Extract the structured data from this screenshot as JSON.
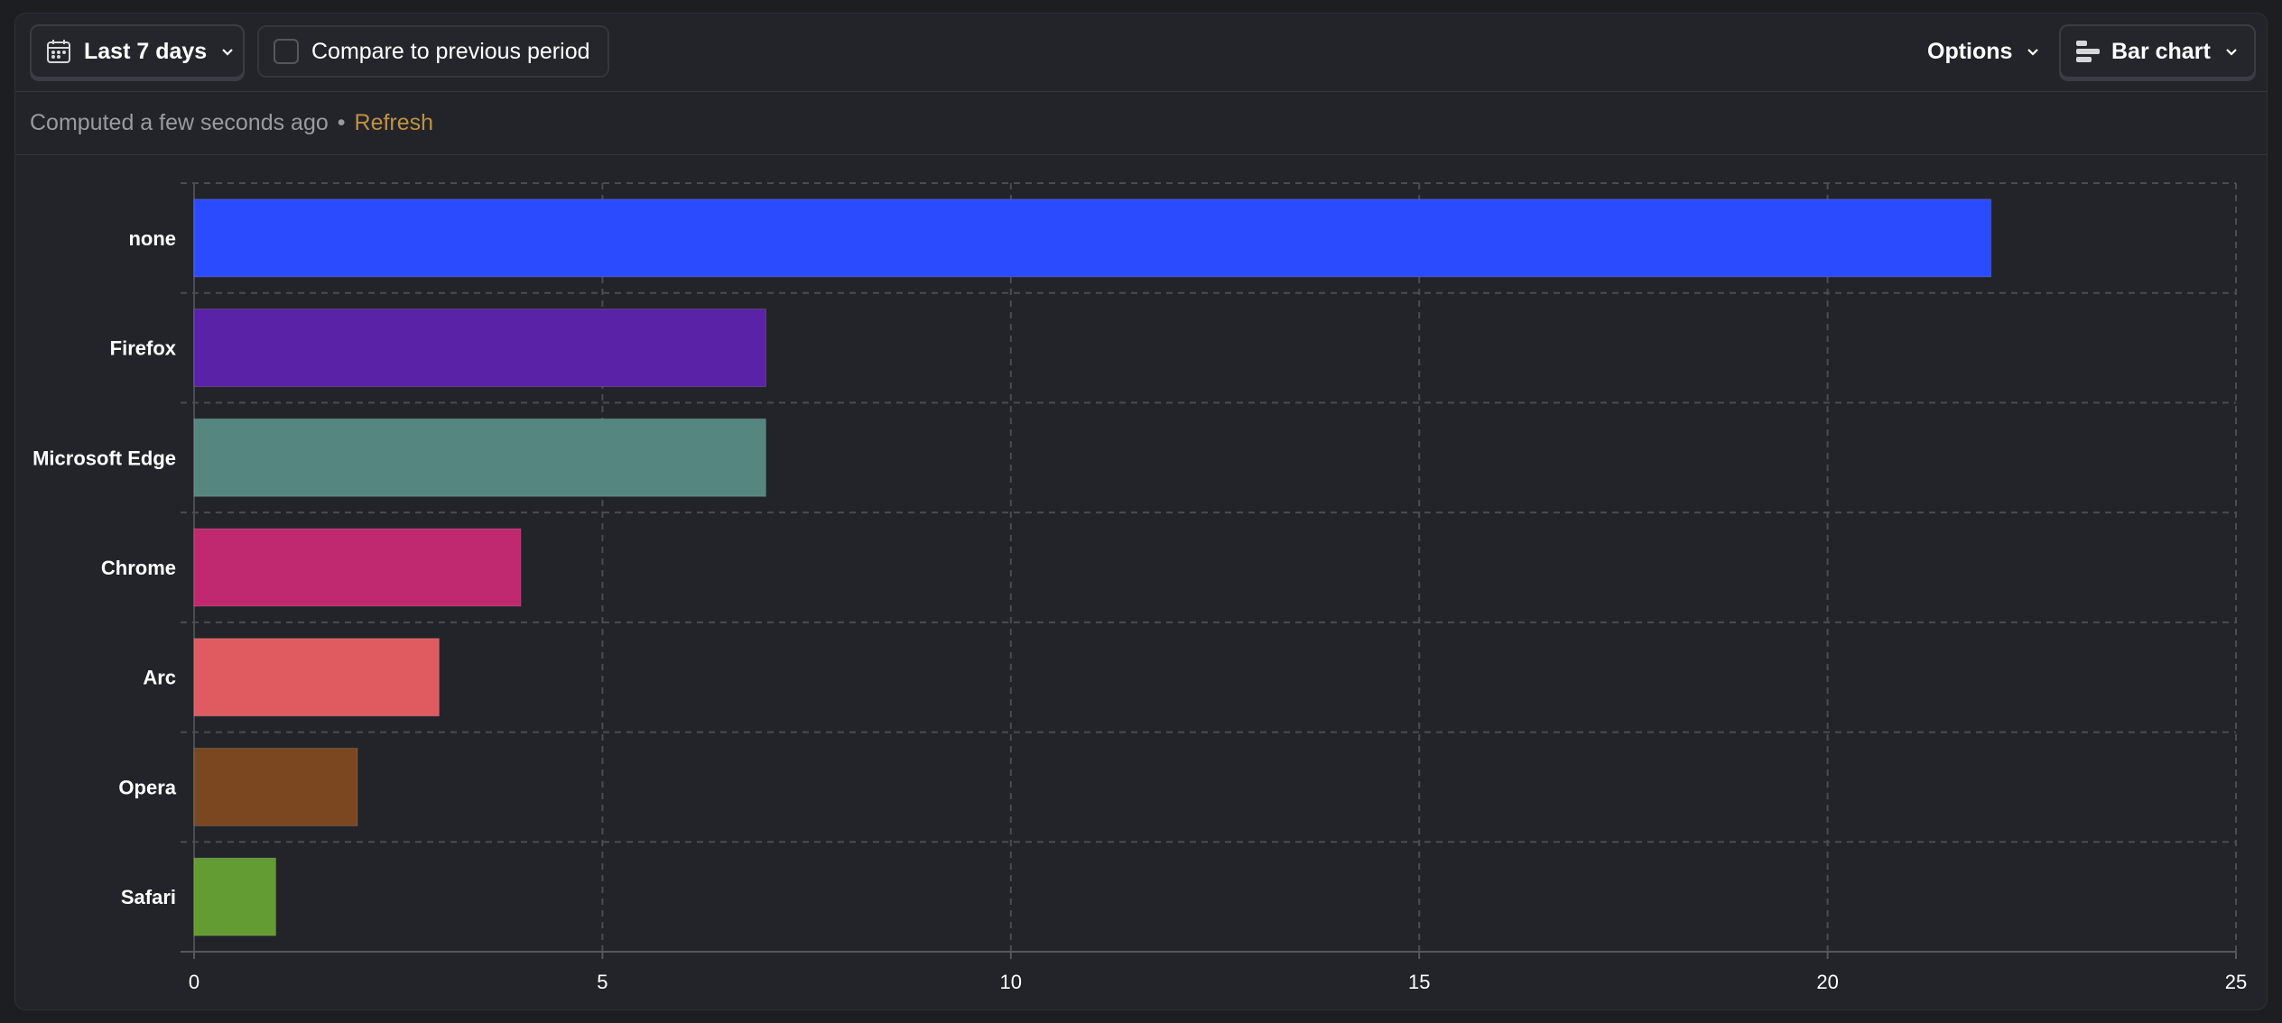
{
  "toolbar": {
    "date_range_label": "Last 7 days",
    "compare_label": "Compare to previous period",
    "compare_checked": false,
    "options_label": "Options",
    "chart_type_label": "Bar chart",
    "icons": {
      "date": "calendar-icon",
      "dropdown": "chevron-down-icon",
      "chart_type": "horizontal-bar-chart-icon"
    }
  },
  "status": {
    "computed_text": "Computed a few seconds ago",
    "separator": "•",
    "refresh_label": "Refresh"
  },
  "chart_data": {
    "type": "bar",
    "orientation": "horizontal",
    "categories": [
      "none",
      "Firefox",
      "Microsoft Edge",
      "Chrome",
      "Arc",
      "Opera",
      "Safari"
    ],
    "values": [
      22,
      7,
      7,
      4,
      3,
      2,
      1
    ],
    "colors": [
      "#2b4bff",
      "#5a22a6",
      "#55867f",
      "#c0296f",
      "#e05b5f",
      "#7a4720",
      "#629c32"
    ],
    "xlim": [
      0,
      25
    ],
    "x_ticks": [
      "0",
      "5",
      "10",
      "15",
      "20",
      "25"
    ],
    "title": "",
    "xlabel": "",
    "ylabel": "",
    "grid": true
  }
}
